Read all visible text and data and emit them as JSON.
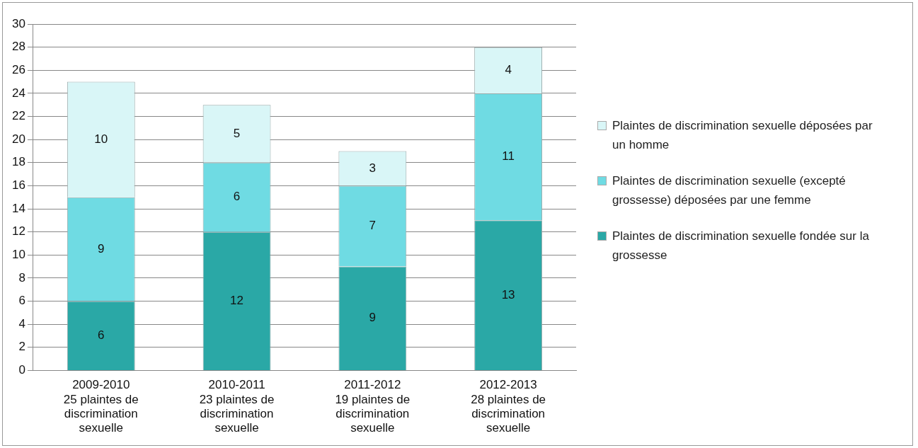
{
  "chart_data": {
    "type": "bar",
    "stacked": true,
    "data_labels": true,
    "grid": "y",
    "legend": "right",
    "categories": [
      "2009-2010\n25 plaintes de\ndiscrimination\nsexuelle",
      "2010-2011\n23 plaintes de\ndiscrimination\nsexuelle",
      "2011-2012\n19 plaintes de\ndiscrimination\nsexuelle",
      "2012-2013\n28 plaintes de\ndiscrimination\nsexuelle"
    ],
    "ylim": [
      0,
      30
    ],
    "yticks": [
      0,
      2,
      4,
      6,
      8,
      10,
      12,
      14,
      16,
      18,
      20,
      22,
      24,
      26,
      28,
      30
    ],
    "series": [
      {
        "name": "Plaintes de discrimination sexuelle fondée sur la grossesse",
        "color": "#2aa8a6",
        "values": [
          6,
          12,
          9,
          13
        ]
      },
      {
        "name": "Plaintes de discrimination sexuelle (excepté grossesse) déposées par une femme",
        "color": "#6fdbe3",
        "values": [
          9,
          6,
          7,
          11
        ]
      },
      {
        "name": "Plaintes de discrimination sexuelle déposées par un homme",
        "color": "#d9f6f7",
        "values": [
          10,
          5,
          3,
          4
        ]
      }
    ]
  }
}
